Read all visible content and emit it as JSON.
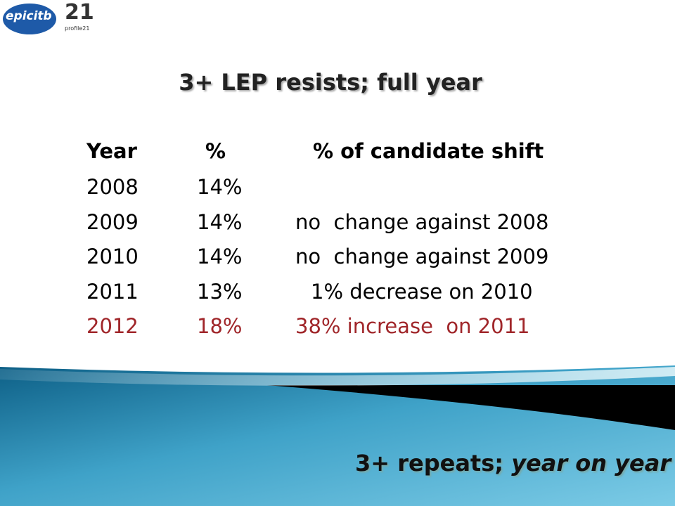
{
  "logos": {
    "left": "epicitb",
    "right_mark": "21",
    "right_caption": "profile21"
  },
  "title": "3+ LEP resists; full year",
  "table": {
    "header": [
      "Year",
      "%",
      "% of candidate shift"
    ],
    "rows": [
      {
        "cells": [
          "2008",
          "14%"
        ],
        "color": "#000000"
      },
      {
        "cells": [
          "2009",
          "14%",
          "no  change against 2008"
        ],
        "color": "#000000"
      },
      {
        "cells": [
          "2010",
          "14%",
          "no  change against 2009"
        ],
        "color": "#000000"
      },
      {
        "cells": [
          "2011",
          "13%",
          "1% decrease on 2010"
        ],
        "color": "#000000"
      },
      {
        "cells": [
          "2012",
          "18%",
          "38% increase  on 2011"
        ],
        "color": "#a0262a"
      }
    ]
  },
  "footer": {
    "normal": "3+ repeats; ",
    "italic": "year on year"
  }
}
